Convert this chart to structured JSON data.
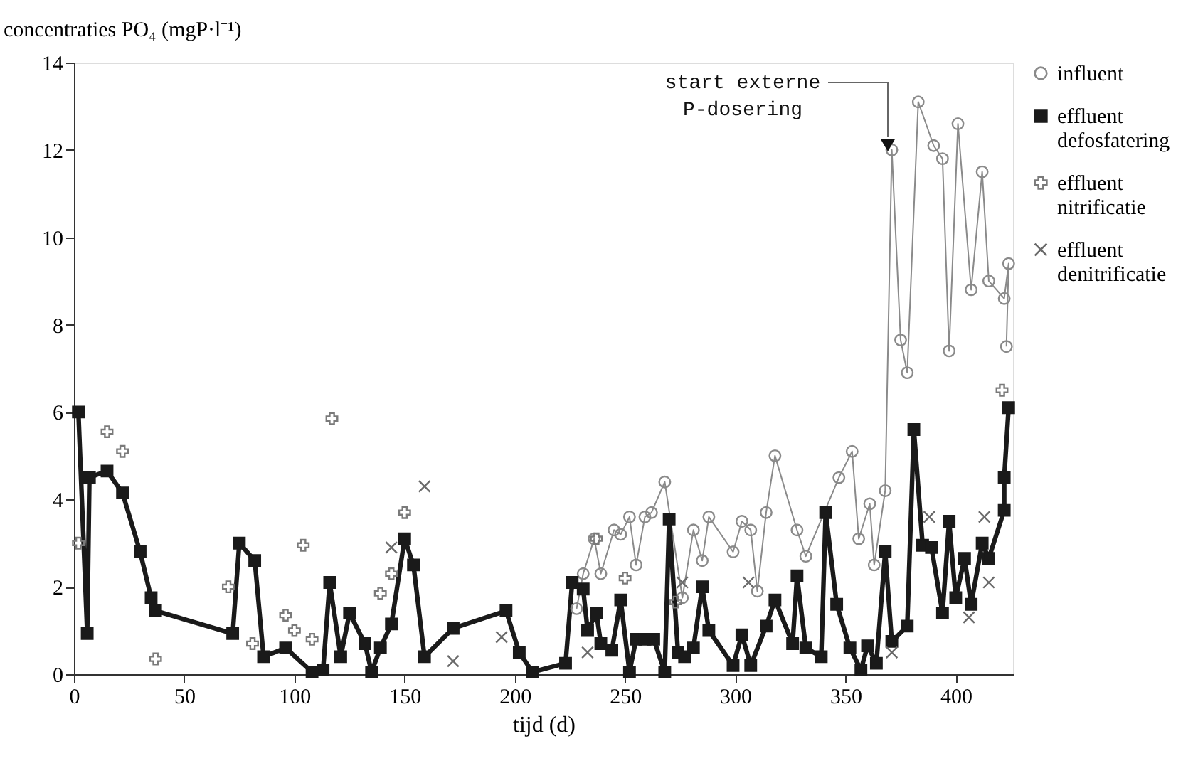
{
  "chart_data": {
    "type": "line",
    "ylabel": "concentraties PO₄ (mgP·l⁻¹)",
    "xlabel": "tijd (d)",
    "xlim": [
      0,
      426
    ],
    "ylim": [
      0,
      14
    ],
    "xticks": [
      0,
      50,
      100,
      150,
      200,
      250,
      300,
      350,
      400
    ],
    "yticks": [
      0,
      2,
      4,
      6,
      8,
      10,
      12,
      14
    ],
    "grid": false,
    "legend": "right",
    "annotations": [
      "start externe P-dosering"
    ],
    "series": [
      {
        "name": "influent",
        "marker": "circle",
        "line_style": "solid",
        "color": "#8a8a8a",
        "x": [
          228,
          231,
          236,
          239,
          245,
          248,
          252,
          255,
          259,
          262,
          268,
          276,
          281,
          285,
          288,
          299,
          303,
          307,
          310,
          314,
          318,
          328,
          332,
          347,
          353,
          356,
          361,
          363,
          368,
          371,
          375,
          378,
          383,
          390,
          394,
          397,
          401,
          407,
          412,
          415,
          422,
          424,
          423
        ],
        "values": [
          1.5,
          2.3,
          3.1,
          2.3,
          3.3,
          3.2,
          3.6,
          2.5,
          3.6,
          3.7,
          4.4,
          1.75,
          3.3,
          2.6,
          3.6,
          2.8,
          3.5,
          3.3,
          1.9,
          3.7,
          5.0,
          3.3,
          2.7,
          4.5,
          5.1,
          3.1,
          3.9,
          2.5,
          4.2,
          12.0,
          7.65,
          6.9,
          13.1,
          12.1,
          11.8,
          7.4,
          12.6,
          8.8,
          11.5,
          9.0,
          8.6,
          9.4,
          7.5
        ]
      },
      {
        "name": "effluent defosfatering",
        "marker": "square",
        "line_style": "solid",
        "color": "#1a1a1a",
        "x": [
          2,
          6,
          7,
          15,
          22,
          30,
          35,
          37,
          72,
          75,
          82,
          86,
          96,
          108,
          113,
          116,
          121,
          125,
          132,
          135,
          139,
          144,
          150,
          154,
          159,
          172,
          196,
          202,
          208,
          223,
          226,
          231,
          233,
          237,
          239,
          244,
          248,
          252,
          255,
          259,
          263,
          268,
          270,
          274,
          277,
          281,
          285,
          288,
          299,
          303,
          307,
          314,
          318,
          326,
          328,
          332,
          339,
          341,
          346,
          352,
          357,
          360,
          364,
          368,
          371,
          378,
          381,
          385,
          389,
          394,
          397,
          400,
          404,
          407,
          412,
          415,
          422,
          422,
          424
        ],
        "values": [
          6.0,
          0.93,
          4.5,
          4.65,
          4.15,
          2.8,
          1.75,
          1.45,
          0.93,
          3.0,
          2.6,
          0.4,
          0.6,
          0.05,
          0.1,
          2.1,
          0.4,
          1.4,
          0.7,
          0.05,
          0.6,
          1.15,
          3.1,
          2.5,
          0.4,
          1.05,
          1.45,
          0.5,
          0.05,
          0.25,
          2.1,
          1.95,
          1.0,
          1.4,
          0.7,
          0.55,
          1.7,
          0.05,
          0.8,
          0.8,
          0.8,
          0.05,
          3.55,
          0.5,
          0.4,
          0.6,
          2.0,
          1.0,
          0.2,
          0.9,
          0.2,
          1.1,
          1.7,
          0.7,
          2.25,
          0.6,
          0.4,
          3.7,
          1.6,
          0.6,
          0.1,
          0.65,
          0.25,
          2.8,
          0.75,
          1.1,
          5.6,
          2.95,
          2.9,
          1.4,
          3.5,
          1.75,
          2.65,
          1.6,
          3.0,
          2.65,
          3.75,
          4.5,
          6.1
        ]
      },
      {
        "name": "effluent nitrificatie",
        "type": "scatter",
        "marker": "cross",
        "color": "#7a7a7a",
        "x": [
          2,
          15,
          22,
          37,
          70,
          81,
          96,
          100,
          104,
          108,
          117,
          139,
          144,
          150,
          237,
          250,
          273,
          421
        ],
        "values": [
          3.0,
          5.55,
          5.1,
          0.35,
          2.0,
          0.7,
          1.35,
          1.0,
          2.95,
          0.8,
          5.85,
          1.85,
          2.3,
          3.7,
          3.1,
          2.2,
          1.65,
          6.5
        ]
      },
      {
        "name": "effluent denitrificatie",
        "type": "scatter",
        "marker": "x",
        "color": "#6a6a6a",
        "x": [
          144,
          159,
          172,
          194,
          233,
          276,
          306,
          371,
          388,
          406,
          413,
          415
        ],
        "values": [
          2.9,
          4.3,
          0.3,
          0.85,
          0.5,
          2.1,
          2.1,
          0.5,
          3.6,
          1.3,
          3.6,
          2.1
        ]
      }
    ]
  }
}
